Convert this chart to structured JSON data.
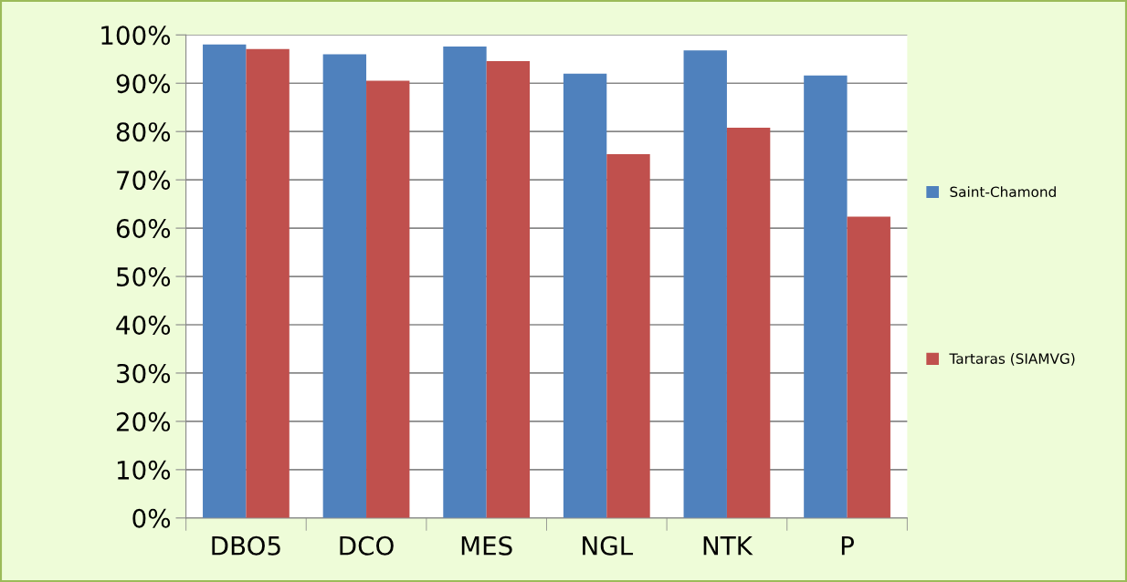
{
  "chart_data": {
    "type": "bar",
    "categories": [
      "DBO5",
      "DCO",
      "MES",
      "NGL",
      "NTK",
      "P"
    ],
    "series": [
      {
        "name": "Saint-Chamond",
        "color": "#4f81bd",
        "values": [
          98.0,
          96.0,
          97.6,
          92.0,
          96.8,
          91.6
        ]
      },
      {
        "name": "Tartaras (SIAMVG)",
        "color": "#c0504d",
        "values": [
          97.1,
          90.5,
          94.6,
          75.3,
          80.8,
          62.4
        ]
      }
    ],
    "ylim": [
      0,
      100
    ],
    "yticks": [
      {
        "value": 0,
        "label": "0%"
      },
      {
        "value": 10,
        "label": "10%"
      },
      {
        "value": 20,
        "label": "20%"
      },
      {
        "value": 30,
        "label": "30%"
      },
      {
        "value": 40,
        "label": "40%"
      },
      {
        "value": 50,
        "label": "50%"
      },
      {
        "value": 60,
        "label": "60%"
      },
      {
        "value": 70,
        "label": "70%"
      },
      {
        "value": 80,
        "label": "80%"
      },
      {
        "value": 90,
        "label": "90%"
      },
      {
        "value": 100,
        "label": "100%"
      }
    ],
    "grid": "y",
    "legend": "right"
  }
}
